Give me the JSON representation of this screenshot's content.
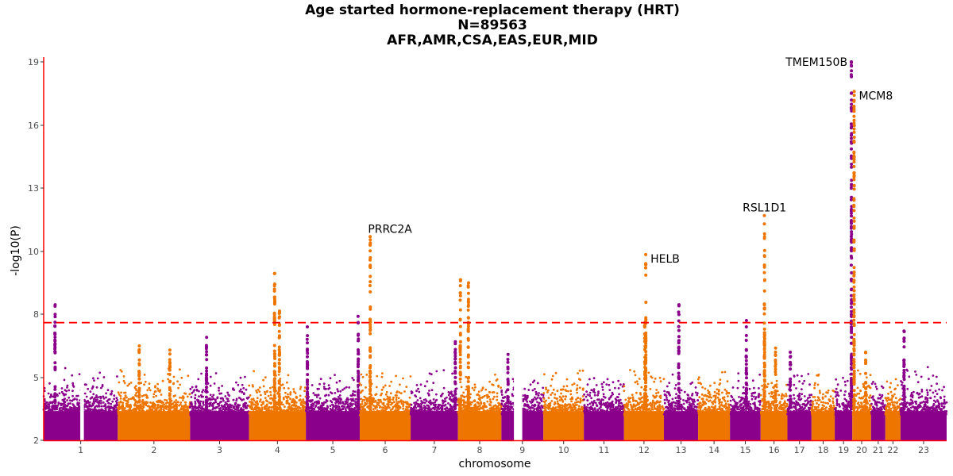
{
  "chart_data": {
    "type": "scatter",
    "subtype": "manhattan",
    "title": [
      "Age started hormone-replacement therapy (HRT)",
      "N=89563",
      "AFR,AMR,CSA,EAS,EUR,MID"
    ],
    "xlabel": "chromosome",
    "ylabel": "-log10(P)",
    "yticks": [
      2,
      5,
      8,
      10,
      13,
      16,
      19
    ],
    "ylim": [
      2,
      19.2
    ],
    "threshold": 7.6,
    "colors": {
      "odd": "#8B008B",
      "even": "#EE7600",
      "threshold": "#FF0000",
      "axis": "#FF0000"
    },
    "chromosomes": [
      {
        "label": "1",
        "length_mb": 249,
        "bg_max": 5.6
      },
      {
        "label": "2",
        "length_mb": 243,
        "bg_max": 5.5
      },
      {
        "label": "3",
        "length_mb": 198,
        "bg_max": 5.3
      },
      {
        "label": "4",
        "length_mb": 191,
        "bg_max": 5.6
      },
      {
        "label": "5",
        "length_mb": 181,
        "bg_max": 5.2
      },
      {
        "label": "6",
        "length_mb": 171,
        "bg_max": 5.3
      },
      {
        "label": "7",
        "length_mb": 159,
        "bg_max": 5.5
      },
      {
        "label": "8",
        "length_mb": 146,
        "bg_max": 5.2
      },
      {
        "label": "9",
        "length_mb": 141,
        "bg_max": 5.0
      },
      {
        "label": "10",
        "length_mb": 136,
        "bg_max": 5.4
      },
      {
        "label": "11",
        "length_mb": 135,
        "bg_max": 5.0
      },
      {
        "label": "12",
        "length_mb": 134,
        "bg_max": 5.5
      },
      {
        "label": "13",
        "length_mb": 115,
        "bg_max": 5.2
      },
      {
        "label": "14",
        "length_mb": 107,
        "bg_max": 5.3
      },
      {
        "label": "15",
        "length_mb": 103,
        "bg_max": 5.3
      },
      {
        "label": "16",
        "length_mb": 90,
        "bg_max": 5.4
      },
      {
        "label": "17",
        "length_mb": 81,
        "bg_max": 5.6
      },
      {
        "label": "18",
        "length_mb": 78,
        "bg_max": 5.2
      },
      {
        "label": "19",
        "length_mb": 59,
        "bg_max": 5.3
      },
      {
        "label": "20",
        "length_mb": 63,
        "bg_max": 5.4
      },
      {
        "label": "21",
        "length_mb": 48,
        "bg_max": 4.8
      },
      {
        "label": "22",
        "length_mb": 51,
        "bg_max": 5.0
      },
      {
        "label": "23",
        "length_mb": 155,
        "bg_max": 5.6
      }
    ],
    "peaks": [
      {
        "chr": 1,
        "pos_mb": 38,
        "max": 8.3
      },
      {
        "chr": 2,
        "pos_mb": 72,
        "max": 6.5
      },
      {
        "chr": 2,
        "pos_mb": 175,
        "max": 6.3
      },
      {
        "chr": 3,
        "pos_mb": 55,
        "max": 6.9
      },
      {
        "chr": 4,
        "pos_mb": 86,
        "max": 9.3
      },
      {
        "chr": 4,
        "pos_mb": 102,
        "max": 8.1
      },
      {
        "chr": 5,
        "pos_mb": 5,
        "max": 7.4
      },
      {
        "chr": 5,
        "pos_mb": 176,
        "max": 7.9
      },
      {
        "chr": 6,
        "pos_mb": 35,
        "max": 10.7
      },
      {
        "chr": 7,
        "pos_mb": 150,
        "max": 6.7
      },
      {
        "chr": 8,
        "pos_mb": 8,
        "max": 9.1
      },
      {
        "chr": 8,
        "pos_mb": 35,
        "max": 9.0
      },
      {
        "chr": 9,
        "pos_mb": 22,
        "max": 6.1
      },
      {
        "chr": 12,
        "pos_mb": 73,
        "max": 9.9
      },
      {
        "chr": 12,
        "pos_mb": 70,
        "max": 7.6
      },
      {
        "chr": 13,
        "pos_mb": 50,
        "max": 8.3
      },
      {
        "chr": 15,
        "pos_mb": 55,
        "max": 7.7
      },
      {
        "chr": 16,
        "pos_mb": 13,
        "max": 11.7
      },
      {
        "chr": 16,
        "pos_mb": 50,
        "max": 6.4
      },
      {
        "chr": 17,
        "pos_mb": 10,
        "max": 6.2
      },
      {
        "chr": 19,
        "pos_mb": 56,
        "max": 19.0
      },
      {
        "chr": 20,
        "pos_mb": 6,
        "max": 17.6
      },
      {
        "chr": 20,
        "pos_mb": 45,
        "max": 6.2
      },
      {
        "chr": 23,
        "pos_mb": 12,
        "max": 7.2
      }
    ],
    "annotations": [
      {
        "label": "TMEM150B",
        "chr": 19,
        "pos_mb": 56,
        "y": 19.0,
        "anchor": "end"
      },
      {
        "label": "MCM8",
        "chr": 20,
        "pos_mb": 6,
        "y": 17.6,
        "anchor": "start"
      },
      {
        "label": "PRRC2A",
        "chr": 6,
        "pos_mb": 35,
        "y": 10.7,
        "anchor": "middle"
      },
      {
        "label": "HELB",
        "chr": 12,
        "pos_mb": 73,
        "y": 9.9,
        "anchor": "start"
      },
      {
        "label": "RSL1D1",
        "chr": 16,
        "pos_mb": 13,
        "y": 11.7,
        "anchor": "middle"
      }
    ]
  }
}
